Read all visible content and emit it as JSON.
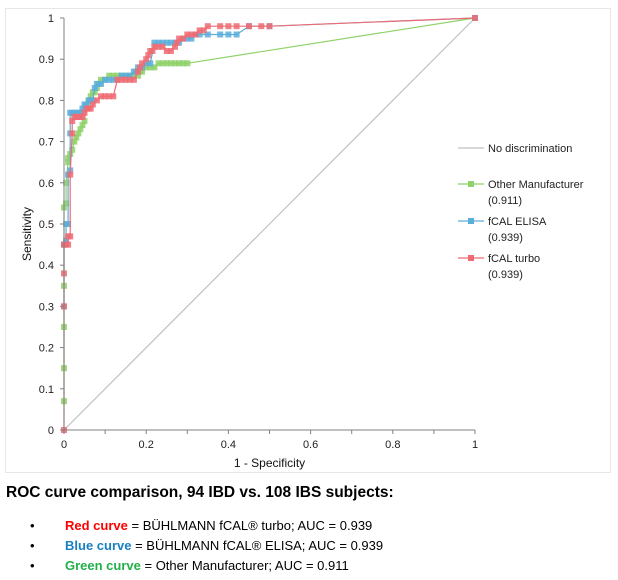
{
  "chart_data": {
    "type": "line",
    "title": "",
    "xlabel": "1 - Specificity",
    "ylabel": "Sensitivity",
    "xlim": [
      0,
      1
    ],
    "ylim": [
      0,
      1
    ],
    "x_ticks": [
      "0",
      "0.2",
      "0.4",
      "0.6",
      "0.8",
      "1"
    ],
    "y_ticks": [
      "0",
      "0.1",
      "0.2",
      "0.3",
      "0.4",
      "0.5",
      "0.6",
      "0.7",
      "0.8",
      "0.9",
      "1"
    ],
    "grid": false,
    "legend_position": "right",
    "series": [
      {
        "name": "No discrimination",
        "color": "#c0c0c0",
        "markers": false,
        "x": [
          0,
          1
        ],
        "y": [
          0,
          1
        ]
      },
      {
        "name": "Other Manufacturer",
        "auc_label": "(0.911)",
        "color": "#8fd16a",
        "markers": true,
        "x": [
          0,
          0,
          0,
          0,
          0,
          0,
          0.005,
          0.005,
          0.01,
          0.01,
          0.015,
          0.02,
          0.025,
          0.03,
          0.035,
          0.04,
          0.045,
          0.05,
          0.055,
          0.06,
          0.065,
          0.07,
          0.075,
          0.08,
          0.085,
          0.09,
          0.1,
          0.11,
          0.12,
          0.13,
          0.14,
          0.15,
          0.16,
          0.17,
          0.18,
          0.185,
          0.19,
          0.2,
          0.21,
          0.22,
          0.23,
          0.24,
          0.25,
          0.26,
          0.27,
          0.28,
          0.29,
          0.3,
          1
        ],
        "y": [
          0.07,
          0.15,
          0.25,
          0.35,
          0.45,
          0.54,
          0.55,
          0.6,
          0.65,
          0.66,
          0.67,
          0.68,
          0.7,
          0.71,
          0.72,
          0.73,
          0.74,
          0.75,
          0.79,
          0.8,
          0.81,
          0.82,
          0.82,
          0.83,
          0.84,
          0.85,
          0.85,
          0.86,
          0.86,
          0.86,
          0.86,
          0.86,
          0.86,
          0.86,
          0.86,
          0.87,
          0.87,
          0.88,
          0.88,
          0.88,
          0.89,
          0.89,
          0.89,
          0.89,
          0.89,
          0.89,
          0.89,
          0.89,
          1
        ]
      },
      {
        "name": "fCAL ELISA",
        "auc_label": "(0.939)",
        "color": "#5aaedc",
        "markers": true,
        "x": [
          0,
          0,
          0.005,
          0.005,
          0.01,
          0.01,
          0.015,
          0.015,
          0.015,
          0.02,
          0.025,
          0.03,
          0.035,
          0.04,
          0.045,
          0.05,
          0.055,
          0.06,
          0.065,
          0.07,
          0.075,
          0.08,
          0.09,
          0.1,
          0.11,
          0.12,
          0.13,
          0.14,
          0.15,
          0.16,
          0.17,
          0.175,
          0.18,
          0.19,
          0.2,
          0.21,
          0.22,
          0.23,
          0.24,
          0.25,
          0.26,
          0.27,
          0.28,
          0.29,
          0.3,
          0.31,
          0.32,
          0.33,
          0.35,
          0.38,
          0.4,
          0.42,
          0.45,
          0.5,
          1
        ],
        "y": [
          0.3,
          0.45,
          0.46,
          0.5,
          0.5,
          0.62,
          0.63,
          0.72,
          0.77,
          0.77,
          0.77,
          0.77,
          0.77,
          0.77,
          0.78,
          0.79,
          0.79,
          0.8,
          0.8,
          0.8,
          0.83,
          0.84,
          0.84,
          0.85,
          0.85,
          0.85,
          0.85,
          0.86,
          0.86,
          0.86,
          0.87,
          0.87,
          0.88,
          0.88,
          0.89,
          0.89,
          0.94,
          0.94,
          0.94,
          0.94,
          0.94,
          0.94,
          0.94,
          0.95,
          0.95,
          0.95,
          0.96,
          0.96,
          0.96,
          0.96,
          0.96,
          0.96,
          0.98,
          0.98,
          1
        ]
      },
      {
        "name": "fCAL turbo",
        "auc_label": "(0.939)",
        "color": "#ee6b73",
        "markers": true,
        "x": [
          0,
          0,
          0,
          0,
          0.005,
          0.01,
          0.01,
          0.015,
          0.015,
          0.02,
          0.02,
          0.025,
          0.03,
          0.035,
          0.04,
          0.045,
          0.05,
          0.055,
          0.06,
          0.065,
          0.07,
          0.08,
          0.09,
          0.1,
          0.11,
          0.12,
          0.13,
          0.14,
          0.15,
          0.16,
          0.17,
          0.18,
          0.185,
          0.19,
          0.2,
          0.205,
          0.21,
          0.215,
          0.22,
          0.23,
          0.24,
          0.25,
          0.26,
          0.27,
          0.275,
          0.28,
          0.29,
          0.3,
          0.31,
          0.32,
          0.33,
          0.34,
          0.35,
          0.38,
          0.4,
          0.42,
          0.45,
          0.48,
          0.5,
          1
        ],
        "y": [
          0,
          0.3,
          0.38,
          0.45,
          0.45,
          0.45,
          0.47,
          0.47,
          0.62,
          0.72,
          0.75,
          0.76,
          0.76,
          0.76,
          0.76,
          0.76,
          0.77,
          0.78,
          0.78,
          0.78,
          0.79,
          0.8,
          0.81,
          0.81,
          0.81,
          0.81,
          0.85,
          0.85,
          0.85,
          0.85,
          0.85,
          0.87,
          0.88,
          0.89,
          0.9,
          0.91,
          0.92,
          0.92,
          0.93,
          0.93,
          0.93,
          0.92,
          0.92,
          0.93,
          0.94,
          0.95,
          0.95,
          0.96,
          0.96,
          0.96,
          0.97,
          0.97,
          0.98,
          0.98,
          0.98,
          0.98,
          0.98,
          0.98,
          0.98,
          1
        ]
      }
    ]
  },
  "caption": {
    "title": "ROC curve comparison, 94 IBD vs. 108 IBS subjects:",
    "bullets": [
      {
        "keyword": "Red curve",
        "keyword_color": "#ff0000",
        "text": " = BÜHLMANN fCAL® turbo; AUC = 0.939"
      },
      {
        "keyword": "Blue curve",
        "keyword_color": "#1a7fc1",
        "text": " = BÜHLMANN fCAL® ELISA; AUC = 0.939"
      },
      {
        "keyword": "Green curve",
        "keyword_color": "#22b04b",
        "text": " = Other Manufacturer; AUC = 0.911"
      }
    ],
    "bullet_glyph": "•"
  }
}
